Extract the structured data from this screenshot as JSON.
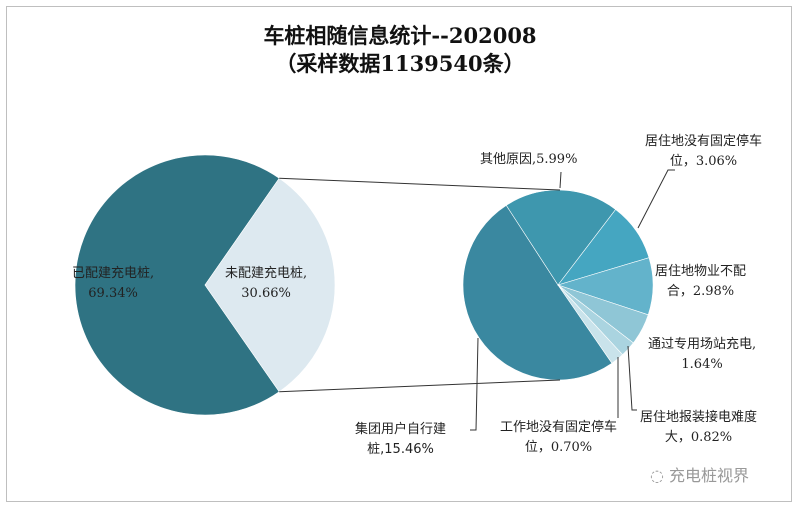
{
  "chart_data": {
    "type": "pie",
    "subtype": "pie-of-pie",
    "title": "车桩相随信息统计--202008",
    "subtitle": "（采样数据1139540条）",
    "primary": [
      {
        "label": "已配建充电桩",
        "value": 69.34,
        "display": "已配建充电桩,\n69.34%",
        "color": "#2f7383"
      },
      {
        "label": "未配建充电桩",
        "value": 30.66,
        "display": "未配建充电桩,\n30.66%",
        "color": "#dde9f0"
      }
    ],
    "secondary": [
      {
        "label": "集团用户自行建桩",
        "value": 15.46,
        "display": "集团用户自行建\n桩,15.46%",
        "color": "#3a88a0"
      },
      {
        "label": "其他原因",
        "value": 5.99,
        "display": "其他原因,5.99%",
        "color": "#3e97ae"
      },
      {
        "label": "居住地没有固定停车位",
        "value": 3.06,
        "display": "居住地没有固定停车\n位，3.06%",
        "color": "#45a6c1"
      },
      {
        "label": "居住地物业不配合",
        "value": 2.98,
        "display": "居住地物业不配\n合，2.98%",
        "color": "#63b3cb"
      },
      {
        "label": "通过专用场站充电",
        "value": 1.64,
        "display": "通过专用场站充电,\n1.64%",
        "color": "#8fc6d6"
      },
      {
        "label": "居住地报装接电难度大",
        "value": 0.82,
        "display": "居住地报装接电难度\n大，0.82%",
        "color": "#aad4e0"
      },
      {
        "label": "工作地没有固定停车位",
        "value": 0.7,
        "display": "工作地没有固定停车\n位，0.70%",
        "color": "#c9e3eb"
      }
    ],
    "legend": "none"
  },
  "watermark": "充电桩视界"
}
